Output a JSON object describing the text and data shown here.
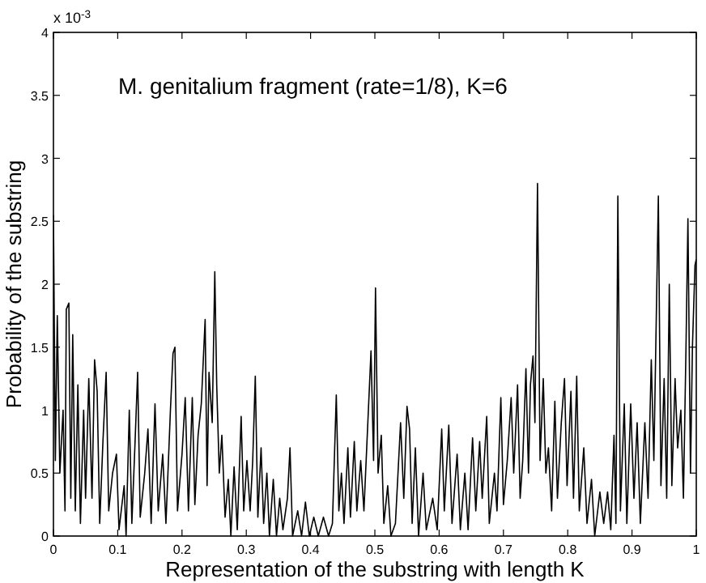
{
  "chart_data": {
    "type": "line",
    "xlabel": "Representation of the substring with length K",
    "ylabel": "Probability of the substring",
    "annotations": [
      "x 10$^{-3}$",
      "M. genitalium fragment (rate=1/8), K=6"
    ],
    "xlim": [
      0,
      1
    ],
    "xticks": [
      0,
      0.1,
      0.2,
      0.3,
      0.4,
      0.5,
      0.6,
      0.7,
      0.8,
      0.9,
      1
    ],
    "ylim": [
      0,
      4
    ],
    "yticks": [
      0,
      0.5,
      1,
      1.5,
      2,
      2.5,
      3,
      3.5,
      4
    ],
    "grid": false,
    "marker": "none",
    "line_style": "solid",
    "series": [
      {
        "color": "#000000",
        "x": [
          0,
          0.003,
          0.006,
          0.01,
          0.015,
          0.018,
          0.02,
          0.024,
          0.027,
          0.03,
          0.034,
          0.038,
          0.042,
          0.047,
          0.05,
          0.055,
          0.06,
          0.064,
          0.068,
          0.072,
          0.077,
          0.082,
          0.086,
          0.092,
          0.098,
          0.102,
          0.11,
          0.113,
          0.118,
          0.122,
          0.127,
          0.131,
          0.135,
          0.142,
          0.147,
          0.152,
          0.158,
          0.163,
          0.17,
          0.175,
          0.182,
          0.186,
          0.189,
          0.193,
          0.2,
          0.205,
          0.21,
          0.216,
          0.22,
          0.225,
          0.23,
          0.236,
          0.239,
          0.242,
          0.247,
          0.251,
          0.254,
          0.258,
          0.262,
          0.267,
          0.272,
          0.276,
          0.281,
          0.286,
          0.292,
          0.296,
          0.301,
          0.306,
          0.31,
          0.314,
          0.318,
          0.323,
          0.327,
          0.332,
          0.336,
          0.342,
          0.347,
          0.352,
          0.357,
          0.364,
          0.368,
          0.372,
          0.38,
          0.386,
          0.392,
          0.398,
          0.405,
          0.412,
          0.42,
          0.428,
          0.434,
          0.44,
          0.444,
          0.448,
          0.452,
          0.458,
          0.462,
          0.468,
          0.472,
          0.478,
          0.483,
          0.494,
          0.498,
          0.501,
          0.505,
          0.51,
          0.514,
          0.52,
          0.525,
          0.532,
          0.54,
          0.545,
          0.55,
          0.554,
          0.558,
          0.563,
          0.568,
          0.575,
          0.58,
          0.59,
          0.597,
          0.604,
          0.608,
          0.615,
          0.62,
          0.628,
          0.633,
          0.64,
          0.645,
          0.652,
          0.657,
          0.663,
          0.667,
          0.674,
          0.678,
          0.686,
          0.69,
          0.696,
          0.7,
          0.706,
          0.712,
          0.716,
          0.722,
          0.726,
          0.73,
          0.735,
          0.739,
          0.742,
          0.746,
          0.749,
          0.753,
          0.757,
          0.762,
          0.766,
          0.77,
          0.775,
          0.78,
          0.784,
          0.79,
          0.795,
          0.799,
          0.805,
          0.809,
          0.814,
          0.818,
          0.825,
          0.83,
          0.837,
          0.842,
          0.85,
          0.856,
          0.862,
          0.867,
          0.872,
          0.875,
          0.878,
          0.882,
          0.888,
          0.892,
          0.898,
          0.903,
          0.908,
          0.913,
          0.92,
          0.925,
          0.93,
          0.934,
          0.937,
          0.941,
          0.945,
          0.95,
          0.954,
          0.958,
          0.962,
          0.967,
          0.971,
          0.976,
          0.98,
          0.984,
          0.987,
          0.991,
          0.994,
          0.998,
          1
        ],
        "values": [
          2.55,
          0.6,
          1.75,
          0.5,
          1,
          0.2,
          1.8,
          1.85,
          0.3,
          1.6,
          0.2,
          1.2,
          0.1,
          1,
          0.3,
          1.25,
          0.3,
          1.4,
          1.15,
          0.1,
          0.75,
          1.3,
          0.2,
          0.5,
          0.65,
          0.05,
          0.4,
          0,
          1,
          0.1,
          0.75,
          1.3,
          0.15,
          0.5,
          0.85,
          0.1,
          1.05,
          0.2,
          0.65,
          0.1,
          1,
          1.45,
          1.5,
          0.2,
          0.65,
          1.1,
          0.2,
          1.1,
          0.25,
          0.8,
          1.05,
          1.72,
          0.4,
          1.3,
          0.9,
          2.1,
          1.2,
          0.5,
          0.8,
          0.15,
          0.45,
          0,
          0.55,
          0.05,
          0.95,
          0.2,
          0.6,
          0.2,
          0.6,
          1.27,
          0.15,
          0.7,
          0.1,
          0.5,
          0,
          0.45,
          0,
          0.3,
          0.05,
          0.3,
          0.7,
          0,
          0.2,
          0,
          0.27,
          0,
          0.15,
          0,
          0.15,
          0,
          0.1,
          1.12,
          0.2,
          0.5,
          0.1,
          0.7,
          0.15,
          0.75,
          0.2,
          0.6,
          0.2,
          1.47,
          0.6,
          1.97,
          0.5,
          0.8,
          0.1,
          0.4,
          0,
          0.1,
          0.9,
          0.3,
          1.03,
          0.85,
          0.1,
          0.7,
          0,
          0.5,
          0.05,
          0.3,
          0.05,
          0.85,
          0.2,
          0.88,
          0.1,
          0.65,
          0.05,
          0.5,
          0.05,
          0.78,
          0.2,
          0.75,
          0.3,
          0.95,
          0.1,
          0.5,
          0.2,
          1.1,
          0.25,
          0.6,
          1.1,
          0.5,
          1.2,
          0.3,
          0.6,
          1.33,
          0.5,
          1.2,
          1.43,
          0.9,
          2.8,
          0.6,
          1.25,
          0.5,
          0.7,
          0.2,
          1.07,
          0.3,
          0.9,
          1.25,
          0.4,
          1.15,
          0.3,
          1.27,
          0.2,
          0.7,
          0.1,
          0.45,
          0,
          0.35,
          0.1,
          0.35,
          0.05,
          0.8,
          0.1,
          2.7,
          0.2,
          1.05,
          0.1,
          1.05,
          0.3,
          0.9,
          0.1,
          0.9,
          0.3,
          1.4,
          0.6,
          1.5,
          2.7,
          0.4,
          1.25,
          0.3,
          2,
          0.4,
          1.25,
          0.7,
          1,
          0.3,
          1.5,
          2.52,
          0.5,
          1.5,
          2.15,
          2.2
        ]
      }
    ]
  }
}
